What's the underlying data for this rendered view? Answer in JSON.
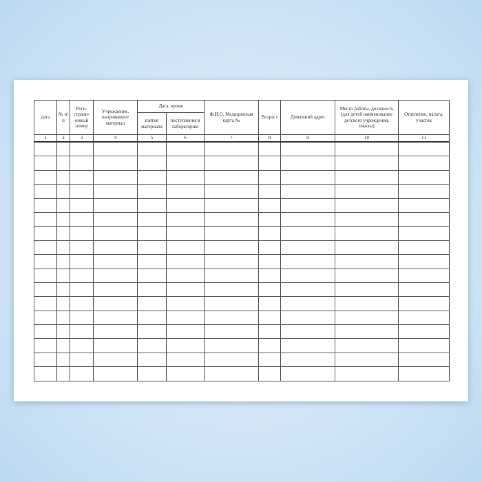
{
  "form": {
    "headers": {
      "date": "дата",
      "num": "№ п/п",
      "reg": "Реги-страци-онный номер",
      "inst": "Учреждение, направившее материал",
      "datetime": "Дата, время",
      "taken": "взятия материала",
      "received": "поступления в лабораторию",
      "fio": "Ф.И.О. Медицинская карта №",
      "age": "Возраст",
      "address": "Домашний адрес",
      "work": "Место работы, должность (для детей наименование детского учреждения, школы)",
      "dept": "Отделение, палата, участок"
    },
    "column_numbers": [
      "1",
      "2",
      "3",
      "4",
      "5",
      "6",
      "7",
      "8",
      "9",
      "10",
      "11"
    ],
    "empty_rows": 17
  }
}
